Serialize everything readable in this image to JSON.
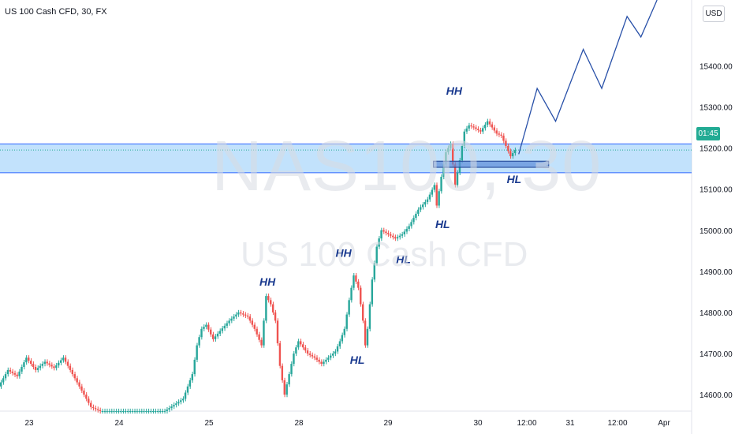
{
  "header": {
    "title": "US 100 Cash CFD, 30, FX",
    "currency": "USD"
  },
  "watermark": {
    "symbol": "NAS100, 30",
    "description": "US 100 Cash CFD"
  },
  "price_badge": {
    "countdown": "01:45"
  },
  "colors": {
    "bull": "#26a69a",
    "bear": "#ef5350",
    "zone_fill": "#90caf9",
    "zone_line": "#2962ff",
    "annotation_text": "#1a3a8f",
    "projection": "#2850a8",
    "axis_text": "#131722",
    "price_badge": "#22ab94"
  },
  "chart_data": {
    "type": "line",
    "title": "US 100 Cash CFD, 30, FX",
    "y_axis": {
      "currency": "USD",
      "ylim": [
        14560,
        15560
      ],
      "ticks": [
        14600,
        14700,
        14800,
        14900,
        15000,
        15100,
        15200,
        15300,
        15400
      ],
      "tick_labels": [
        "14600.00",
        "14700.00",
        "14800.00",
        "14900.00",
        "15000.00",
        "15100.00",
        "15200.00",
        "15300.00",
        "15400.00"
      ]
    },
    "x_axis": {
      "tick_labels": [
        "23",
        "24",
        "25",
        "28",
        "29",
        "30",
        "12:00",
        "31",
        "12:00",
        "Apr"
      ],
      "xlim_bars": [
        0,
        300
      ]
    },
    "grid": false,
    "series": [
      {
        "name": "price",
        "style": "candlestick-approx",
        "points": [
          [
            0,
            14620
          ],
          [
            4,
            14660
          ],
          [
            8,
            14645
          ],
          [
            12,
            14690
          ],
          [
            16,
            14660
          ],
          [
            20,
            14680
          ],
          [
            24,
            14665
          ],
          [
            28,
            14690
          ],
          [
            32,
            14650
          ],
          [
            36,
            14610
          ],
          [
            40,
            14570
          ],
          [
            44,
            14560
          ],
          [
            64,
            14560
          ],
          [
            72,
            14560
          ],
          [
            80,
            14590
          ],
          [
            84,
            14650
          ],
          [
            86,
            14720
          ],
          [
            88,
            14760
          ],
          [
            90,
            14770
          ],
          [
            93,
            14735
          ],
          [
            96,
            14755
          ],
          [
            100,
            14780
          ],
          [
            104,
            14800
          ],
          [
            108,
            14790
          ],
          [
            111,
            14760
          ],
          [
            114,
            14720
          ],
          [
            116,
            14840
          ],
          [
            118,
            14820
          ],
          [
            120,
            14780
          ],
          [
            122,
            14670
          ],
          [
            124,
            14600
          ],
          [
            126,
            14650
          ],
          [
            128,
            14700
          ],
          [
            130,
            14730
          ],
          [
            132,
            14715
          ],
          [
            134,
            14700
          ],
          [
            137,
            14690
          ],
          [
            140,
            14675
          ],
          [
            143,
            14690
          ],
          [
            146,
            14705
          ],
          [
            148,
            14730
          ],
          [
            150,
            14760
          ],
          [
            152,
            14830
          ],
          [
            154,
            14890
          ],
          [
            156,
            14860
          ],
          [
            158,
            14780
          ],
          [
            159,
            14720
          ],
          [
            160,
            14760
          ],
          [
            162,
            14880
          ],
          [
            164,
            14960
          ],
          [
            166,
            15000
          ],
          [
            169,
            14990
          ],
          [
            172,
            14980
          ],
          [
            175,
            14990
          ],
          [
            178,
            15010
          ],
          [
            182,
            15050
          ],
          [
            186,
            15075
          ],
          [
            189,
            15110
          ],
          [
            190,
            15060
          ],
          [
            192,
            15130
          ],
          [
            194,
            15190
          ],
          [
            196,
            15210
          ],
          [
            198,
            15110
          ],
          [
            200,
            15170
          ],
          [
            202,
            15240
          ],
          [
            204,
            15255
          ],
          [
            206,
            15250
          ],
          [
            209,
            15240
          ],
          [
            212,
            15265
          ],
          [
            216,
            15235
          ],
          [
            218,
            15230
          ],
          [
            220,
            15205
          ],
          [
            222,
            15180
          ],
          [
            224,
            15195
          ]
        ]
      },
      {
        "name": "projection",
        "style": "line",
        "points": [
          [
            225,
            15185
          ],
          [
            233,
            15345
          ],
          [
            241,
            15265
          ],
          [
            253,
            15440
          ],
          [
            261,
            15345
          ],
          [
            272,
            15520
          ],
          [
            278,
            15470
          ],
          [
            285,
            15560
          ]
        ]
      }
    ],
    "zones": [
      {
        "name": "support-zone",
        "y_range": [
          15140,
          15210
        ]
      },
      {
        "name": "entry-box",
        "x_range": [
          188,
          238
        ],
        "y_range": [
          15153,
          15168
        ]
      }
    ],
    "annotations": [
      {
        "text": "HH",
        "x": 116,
        "y": 14865
      },
      {
        "text": "HL",
        "x": 155,
        "y": 14675
      },
      {
        "text": "HH",
        "x": 149,
        "y": 14935
      },
      {
        "text": "HL",
        "x": 175,
        "y": 14920
      },
      {
        "text": "HL",
        "x": 192,
        "y": 15005
      },
      {
        "text": "HH",
        "x": 197,
        "y": 15330
      },
      {
        "text": "HL",
        "x": 223,
        "y": 15115
      }
    ]
  }
}
